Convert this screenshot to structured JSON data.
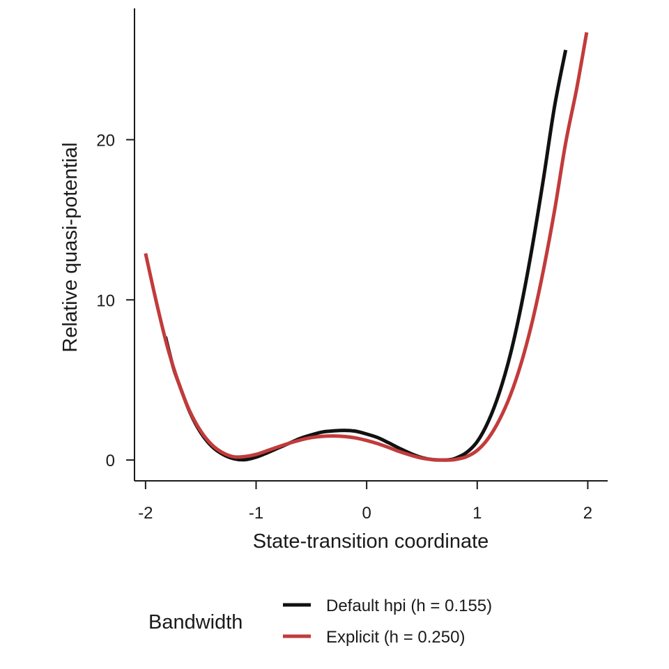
{
  "chart_data": {
    "type": "line",
    "xlabel": "State-transition coordinate",
    "ylabel": "Relative quasi-potential",
    "xlim": [
      -2.1,
      2.18
    ],
    "ylim": [
      -1.3,
      28.2
    ],
    "xticks": [
      -2,
      -1,
      0,
      1,
      2
    ],
    "xtick_labels": [
      "-2",
      "-1",
      "0",
      "1",
      "2"
    ],
    "yticks": [
      0,
      10,
      20
    ],
    "ytick_labels": [
      "0",
      "10",
      "20"
    ],
    "grid": false,
    "legend": {
      "title": "Bandwidth",
      "placement": "bottom"
    },
    "series": [
      {
        "name": "Default hpi (h = 0.155)",
        "color": "#111111",
        "x": [
          -1.82,
          -1.75,
          -1.7,
          -1.6,
          -1.5,
          -1.4,
          -1.3,
          -1.2,
          -1.1,
          -1.0,
          -0.9,
          -0.8,
          -0.7,
          -0.6,
          -0.5,
          -0.4,
          -0.3,
          -0.2,
          -0.1,
          0.0,
          0.1,
          0.2,
          0.3,
          0.4,
          0.5,
          0.6,
          0.7,
          0.75,
          0.8,
          0.9,
          1.0,
          1.1,
          1.2,
          1.3,
          1.4,
          1.5,
          1.6,
          1.7,
          1.8
        ],
        "y": [
          7.7,
          5.8,
          4.8,
          3.0,
          1.7,
          0.85,
          0.35,
          0.08,
          0.02,
          0.18,
          0.45,
          0.75,
          1.05,
          1.35,
          1.57,
          1.75,
          1.82,
          1.85,
          1.8,
          1.62,
          1.4,
          1.07,
          0.72,
          0.4,
          0.15,
          0.02,
          0.0,
          0.02,
          0.1,
          0.45,
          1.15,
          2.4,
          4.2,
          6.6,
          9.7,
          13.4,
          17.6,
          22.1,
          25.6
        ]
      },
      {
        "name": "Explicit (h = 0.250)",
        "color": "#c23b3b",
        "x": [
          -2.0,
          -1.9,
          -1.8,
          -1.7,
          -1.6,
          -1.5,
          -1.4,
          -1.3,
          -1.2,
          -1.1,
          -1.0,
          -0.9,
          -0.8,
          -0.7,
          -0.6,
          -0.5,
          -0.4,
          -0.3,
          -0.2,
          -0.1,
          0.0,
          0.1,
          0.2,
          0.3,
          0.4,
          0.5,
          0.6,
          0.7,
          0.75,
          0.8,
          0.9,
          1.0,
          1.1,
          1.2,
          1.3,
          1.4,
          1.5,
          1.6,
          1.7,
          1.8,
          1.9,
          1.99
        ],
        "y": [
          12.9,
          9.8,
          7.0,
          4.8,
          3.05,
          1.8,
          0.95,
          0.45,
          0.2,
          0.22,
          0.35,
          0.58,
          0.82,
          1.05,
          1.25,
          1.4,
          1.48,
          1.5,
          1.47,
          1.38,
          1.22,
          1.02,
          0.78,
          0.52,
          0.3,
          0.12,
          0.03,
          0.0,
          0.0,
          0.03,
          0.2,
          0.6,
          1.35,
          2.5,
          4.05,
          6.1,
          8.7,
          11.9,
          15.6,
          19.8,
          23.2,
          26.7
        ]
      }
    ]
  }
}
